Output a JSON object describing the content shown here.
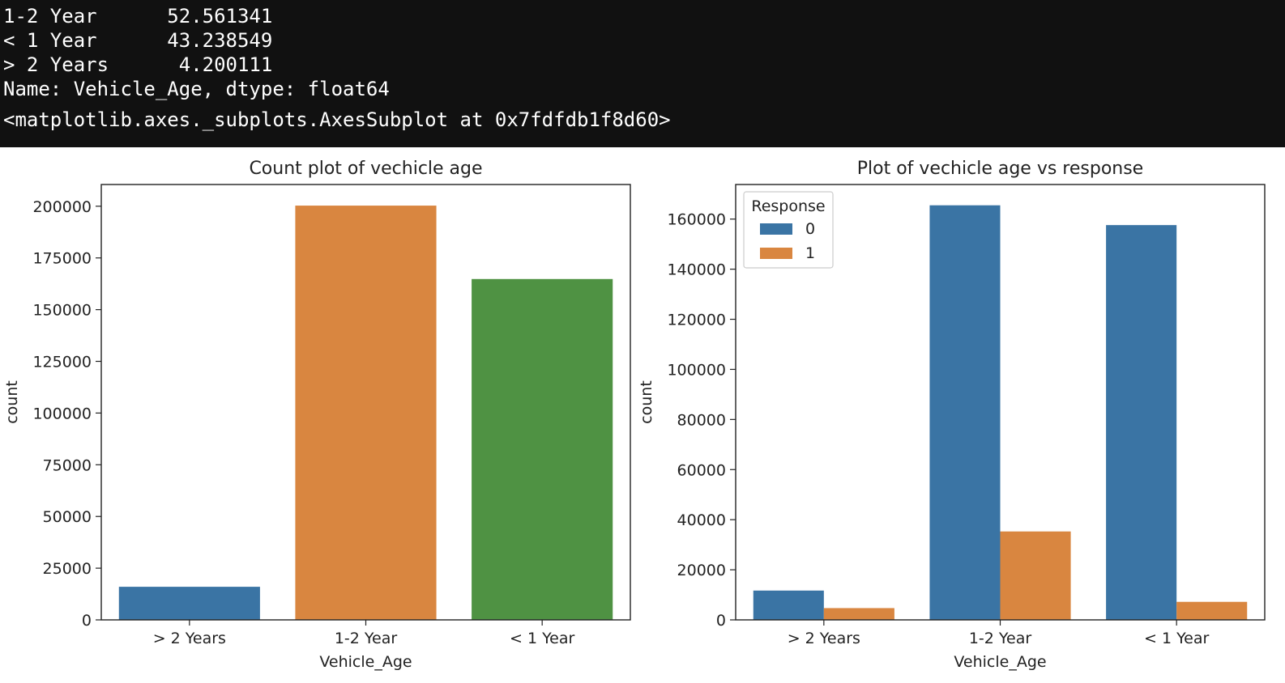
{
  "console": {
    "lines": [
      "1-2 Year      52.561341",
      "< 1 Year      43.238549",
      "> 2 Years      4.200111",
      "Name: Vehicle_Age, dtype: float64",
      "<matplotlib.axes._subplots.AxesSubplot at 0x7fdfdb1f8d60>"
    ]
  },
  "colors": {
    "blue": "#3a74a4",
    "orange": "#d98640",
    "green": "#4f9243"
  },
  "chart_data": [
    {
      "type": "bar",
      "title": "Count plot of vechicle age",
      "xlabel": "Vehicle_Age",
      "ylabel": "count",
      "categories": [
        "> 2 Years",
        "1-2 Year",
        "< 1 Year"
      ],
      "values": [
        16000,
        200300,
        164800
      ],
      "bar_colors": [
        "#3a74a4",
        "#d98640",
        "#4f9243"
      ],
      "ylim": [
        0,
        210500
      ],
      "yticks": [
        0,
        25000,
        50000,
        75000,
        100000,
        125000,
        150000,
        175000,
        200000
      ],
      "grid": false
    },
    {
      "type": "bar",
      "title": "Plot of vechicle age vs response",
      "xlabel": "Vehicle_Age",
      "ylabel": "count",
      "categories": [
        "> 2 Years",
        "1-2 Year",
        "< 1 Year"
      ],
      "series": [
        {
          "name": "0",
          "values": [
            11700,
            165500,
            157600
          ],
          "color": "#3a74a4"
        },
        {
          "name": "1",
          "values": [
            4700,
            35300,
            7200
          ],
          "color": "#d98640"
        }
      ],
      "legend_title": "Response",
      "legend_position": "top-left",
      "ylim": [
        0,
        173800
      ],
      "yticks": [
        0,
        20000,
        40000,
        60000,
        80000,
        100000,
        120000,
        140000,
        160000
      ],
      "grid": false
    }
  ]
}
